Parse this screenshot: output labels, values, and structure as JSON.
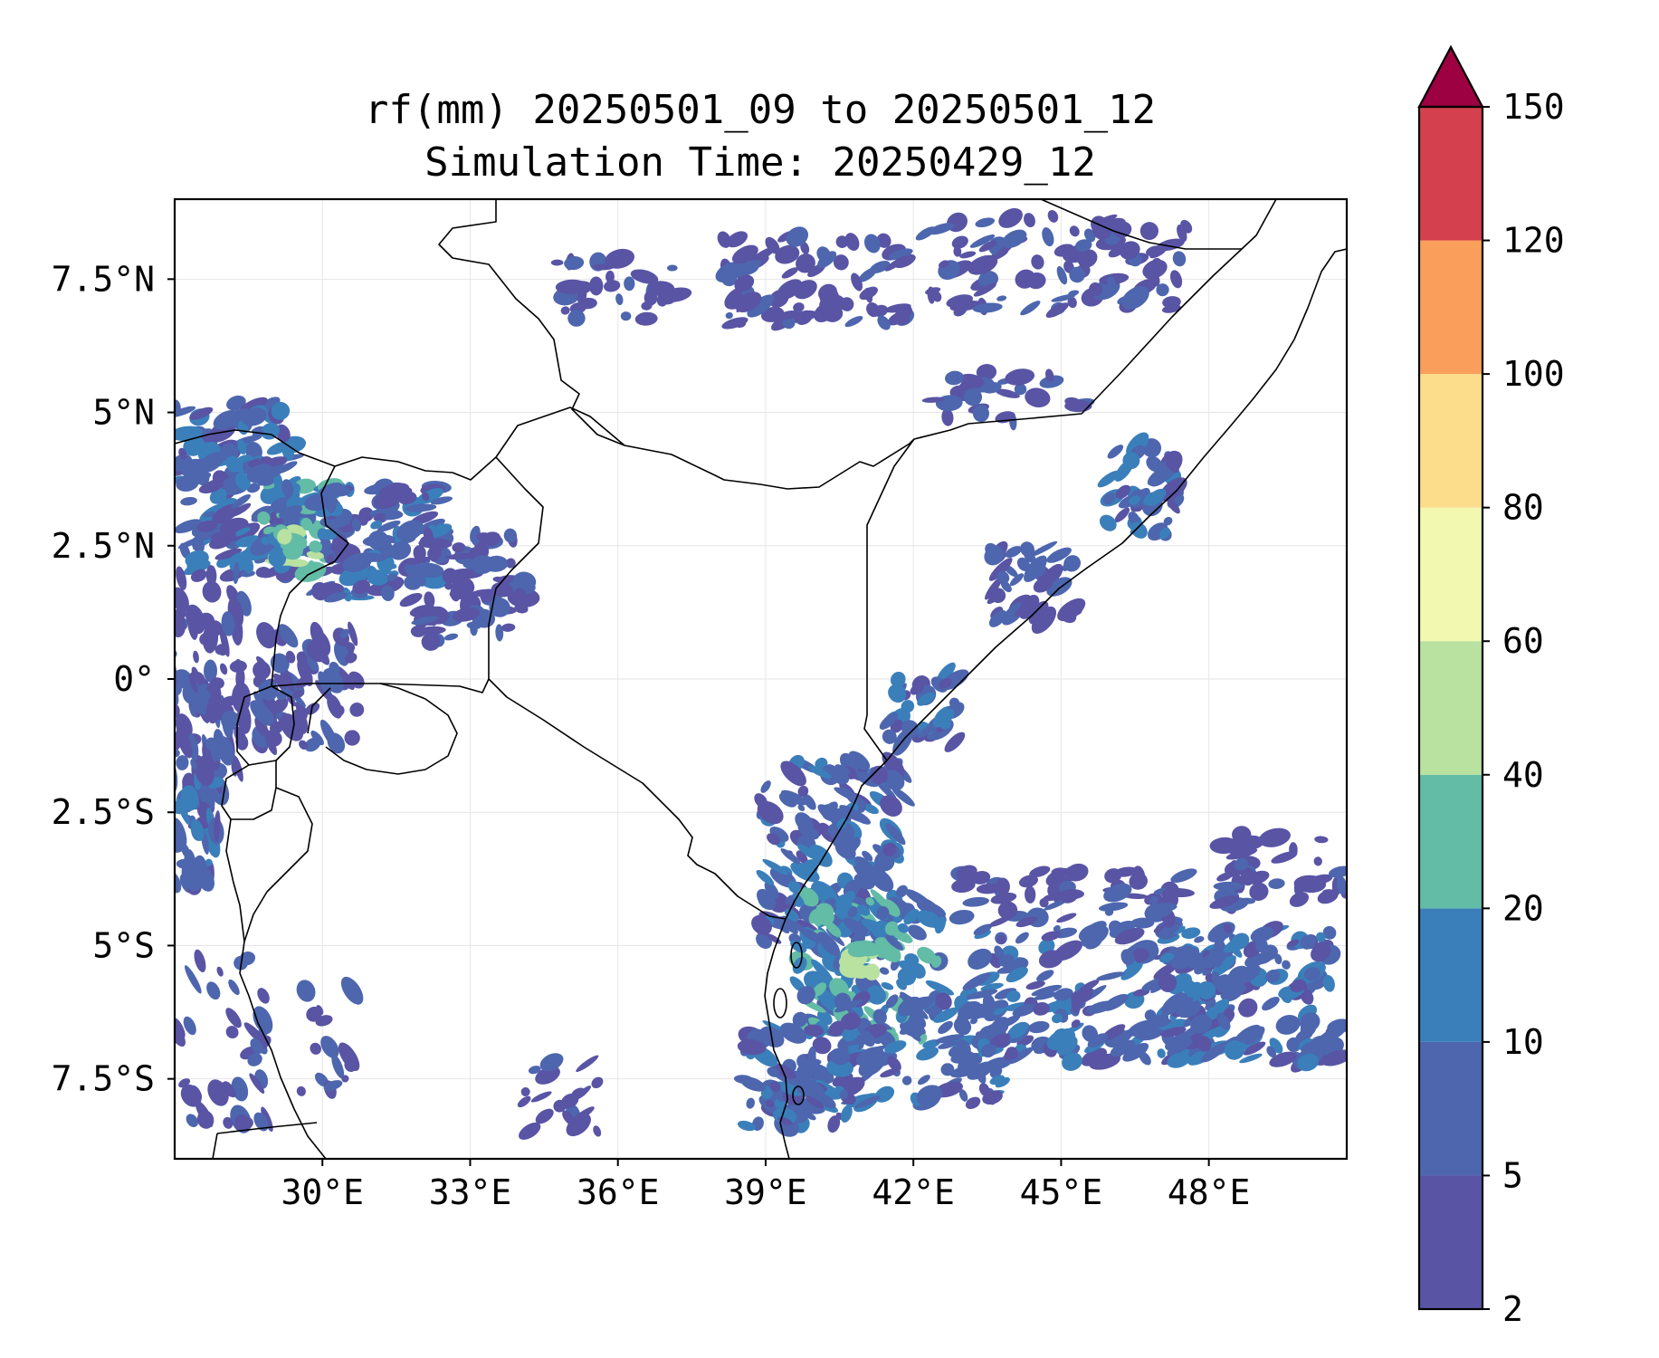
{
  "title": {
    "line1": "rf(mm) 20250501_09 to 20250501_12",
    "line2": "Simulation Time: 20250429_12"
  },
  "map": {
    "lon_range": [
      27.0,
      50.8
    ],
    "lat_range": [
      -9.0,
      9.0
    ],
    "grid": true,
    "lon_ticks": [
      {
        "value": 30,
        "label": "30°E"
      },
      {
        "value": 33,
        "label": "33°E"
      },
      {
        "value": 36,
        "label": "36°E"
      },
      {
        "value": 39,
        "label": "39°E"
      },
      {
        "value": 42,
        "label": "42°E"
      },
      {
        "value": 45,
        "label": "45°E"
      },
      {
        "value": 48,
        "label": "48°E"
      }
    ],
    "lat_ticks": [
      {
        "value": 7.5,
        "label": "7.5°N"
      },
      {
        "value": 5,
        "label": "5°N"
      },
      {
        "value": 2.5,
        "label": "2.5°N"
      },
      {
        "value": 0,
        "label": "0°"
      },
      {
        "value": -2.5,
        "label": "2.5°S"
      },
      {
        "value": -5,
        "label": "5°S"
      },
      {
        "value": -7.5,
        "label": "7.5°S"
      }
    ]
  },
  "colorbar": {
    "levels": [
      2,
      5,
      10,
      20,
      40,
      60,
      80,
      100,
      120,
      150
    ],
    "labels": [
      "2",
      "5",
      "10",
      "20",
      "40",
      "60",
      "80",
      "100",
      "120",
      "150"
    ],
    "colors": [
      "#5954a4",
      "#4d66ae",
      "#3b7fba",
      "#63bca6",
      "#b9e1a0",
      "#f2f8b0",
      "#fbdd8c",
      "#f99f5b",
      "#d4404e"
    ],
    "extend_color": "#9e0142",
    "extend": "max"
  },
  "colors": {
    "rain_low": "#5954a4",
    "rain_mid": "#4d66ae",
    "rain_high": "#63bca6",
    "rain_peak": "#b9e1a0",
    "border": "#000000",
    "gridline": "#e6e6e6"
  }
}
